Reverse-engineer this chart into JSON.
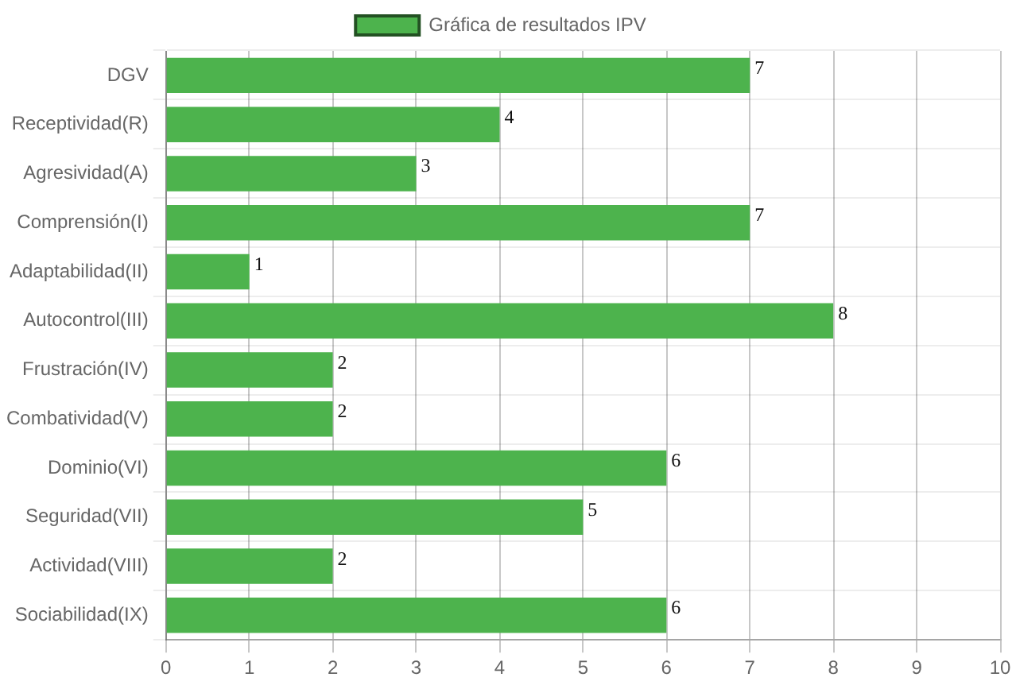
{
  "chart_data": {
    "type": "bar",
    "orientation": "horizontal",
    "categories": [
      "DGV",
      "Receptividad(R)",
      "Agresividad(A)",
      "Comprensión(I)",
      "Adaptabilidad(II)",
      "Autocontrol(III)",
      "Frustración(IV)",
      "Combatividad(V)",
      "Dominio(VI)",
      "Seguridad(VII)",
      "Actividad(VIII)",
      "Sociabilidad(IX)"
    ],
    "series": [
      {
        "name": "Gráfica de resultados IPV",
        "color": "#4db34d",
        "values": [
          7,
          4,
          3,
          7,
          1,
          8,
          2,
          2,
          6,
          5,
          2,
          6
        ]
      }
    ],
    "xlim": [
      0,
      10
    ],
    "xticks": [
      0,
      1,
      2,
      3,
      4,
      5,
      6,
      7,
      8,
      9,
      10
    ],
    "grid": true,
    "legend": "top",
    "data_labels": true
  }
}
